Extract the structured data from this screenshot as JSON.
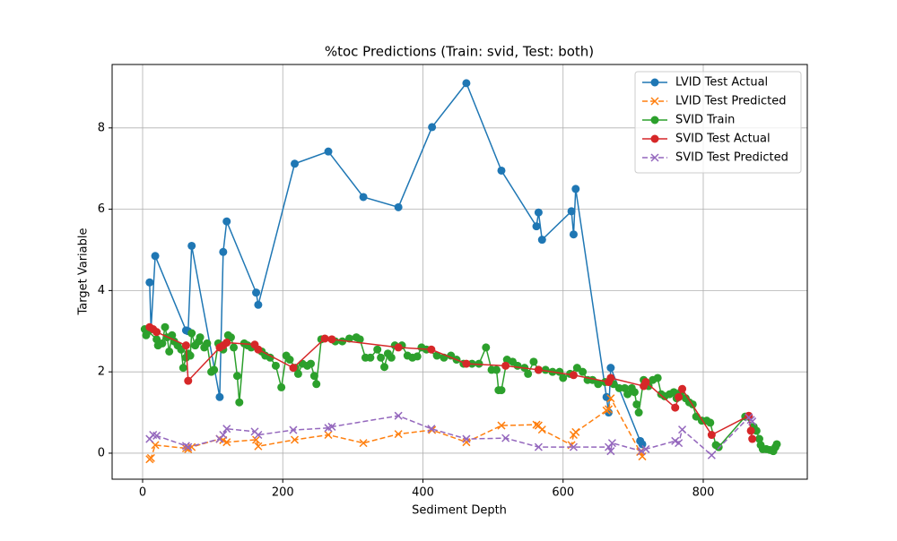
{
  "chart_data": {
    "type": "line",
    "title": "%toc Predictions (Train: svid, Test: both)",
    "x_label": "Sediment Depth",
    "y_label": "Target Variable",
    "xlim": [
      -43.5,
      948.5
    ],
    "ylim": [
      -0.64,
      9.56
    ],
    "xticks": [
      0,
      200,
      400,
      600,
      800
    ],
    "yticks": [
      0,
      2,
      4,
      6,
      8
    ],
    "grid": true,
    "legend": "upper right",
    "series": [
      {
        "name": "LVID Test Actual",
        "color": "#1f77b4",
        "linestyle": "solid",
        "marker": "o",
        "x": [
          10,
          12,
          18,
          62,
          65,
          70,
          110,
          115,
          120,
          162,
          165,
          217,
          265,
          315,
          365,
          413,
          462,
          512,
          562,
          565,
          570,
          612,
          615,
          618,
          662,
          665,
          668,
          710,
          713
        ],
        "values": [
          4.2,
          3.05,
          4.85,
          3.02,
          3.0,
          5.1,
          1.38,
          4.95,
          5.7,
          3.95,
          3.65,
          7.12,
          7.42,
          6.3,
          6.05,
          8.02,
          9.1,
          6.95,
          5.58,
          5.92,
          5.25,
          5.95,
          5.38,
          6.5,
          1.38,
          1.0,
          2.1,
          0.3,
          0.22
        ]
      },
      {
        "name": "LVID Test Predicted",
        "color": "#ff7f0e",
        "linestyle": "dashed",
        "marker": "x",
        "x": [
          10,
          12,
          18,
          62,
          65,
          70,
          110,
          115,
          120,
          162,
          165,
          217,
          265,
          315,
          365,
          413,
          462,
          512,
          562,
          565,
          570,
          612,
          615,
          618,
          662,
          665,
          668,
          710,
          713
        ],
        "values": [
          -0.15,
          -0.12,
          0.2,
          0.12,
          0.1,
          0.15,
          0.35,
          0.32,
          0.27,
          0.33,
          0.17,
          0.33,
          0.45,
          0.25,
          0.47,
          0.57,
          0.27,
          0.68,
          0.7,
          0.68,
          0.58,
          0.2,
          0.45,
          0.52,
          1.05,
          1.08,
          1.35,
          0.03,
          -0.08
        ]
      },
      {
        "name": "SVID Train",
        "color": "#2ca02c",
        "linestyle": "solid",
        "marker": "o",
        "x": [
          3,
          5,
          8,
          20,
          22,
          28,
          32,
          35,
          38,
          42,
          45,
          50,
          55,
          58,
          62,
          65,
          68,
          70,
          75,
          80,
          82,
          88,
          92,
          98,
          102,
          108,
          115,
          122,
          126,
          130,
          135,
          138,
          145,
          150,
          155,
          170,
          175,
          182,
          190,
          198,
          205,
          210,
          218,
          222,
          228,
          235,
          240,
          245,
          248,
          255,
          275,
          285,
          295,
          305,
          310,
          318,
          325,
          335,
          340,
          345,
          350,
          355,
          360,
          370,
          378,
          385,
          392,
          398,
          405,
          420,
          430,
          440,
          448,
          458,
          470,
          480,
          490,
          498,
          505,
          508,
          512,
          520,
          528,
          535,
          545,
          550,
          558,
          565,
          575,
          585,
          595,
          600,
          610,
          620,
          628,
          635,
          642,
          650,
          660,
          672,
          680,
          688,
          692,
          698,
          702,
          705,
          708,
          715,
          722,
          728,
          735,
          740,
          745,
          752,
          758,
          762,
          768,
          775,
          780,
          785,
          790,
          798,
          805,
          810,
          818,
          822,
          860,
          872,
          876,
          880,
          882,
          885,
          890,
          895,
          900,
          903,
          905
        ],
        "values": [
          3.05,
          2.9,
          3.0,
          2.8,
          2.65,
          2.7,
          3.1,
          2.85,
          2.5,
          2.9,
          2.75,
          2.65,
          2.55,
          2.1,
          2.35,
          2.45,
          2.4,
          2.95,
          2.65,
          2.75,
          2.85,
          2.6,
          2.7,
          2.0,
          2.05,
          2.7,
          2.55,
          2.9,
          2.85,
          2.6,
          1.9,
          1.25,
          2.7,
          2.65,
          2.6,
          2.5,
          2.4,
          2.35,
          2.15,
          1.62,
          2.4,
          2.3,
          2.1,
          1.95,
          2.2,
          2.15,
          2.2,
          1.9,
          1.7,
          2.8,
          2.75,
          2.75,
          2.82,
          2.85,
          2.8,
          2.35,
          2.35,
          2.55,
          2.35,
          2.12,
          2.45,
          2.35,
          2.65,
          2.65,
          2.4,
          2.35,
          2.38,
          2.6,
          2.55,
          2.4,
          2.35,
          2.4,
          2.3,
          2.2,
          2.2,
          2.2,
          2.6,
          2.05,
          2.05,
          1.55,
          1.55,
          2.3,
          2.25,
          2.15,
          2.1,
          1.95,
          2.25,
          2.05,
          2.05,
          2.0,
          2.0,
          1.85,
          1.95,
          2.1,
          2.0,
          1.8,
          1.8,
          1.7,
          1.75,
          1.7,
          1.6,
          1.6,
          1.45,
          1.6,
          1.5,
          1.2,
          1.0,
          1.8,
          1.65,
          1.8,
          1.85,
          1.45,
          1.4,
          1.45,
          1.5,
          1.35,
          1.5,
          1.35,
          1.25,
          1.2,
          0.9,
          0.8,
          0.8,
          0.75,
          0.2,
          0.15,
          0.9,
          0.65,
          0.55,
          0.35,
          0.2,
          0.1,
          0.1,
          0.08,
          0.05,
          0.15,
          0.22
        ]
      },
      {
        "name": "SVID Test Actual",
        "color": "#d62728",
        "linestyle": "solid",
        "marker": "o",
        "x": [
          10,
          15,
          20,
          62,
          65,
          110,
          115,
          120,
          160,
          165,
          215,
          260,
          270,
          365,
          412,
          462,
          518,
          565,
          615,
          665,
          668,
          715,
          718,
          760,
          765,
          770,
          812,
          865,
          868,
          870
        ],
        "values": [
          3.1,
          3.05,
          2.98,
          2.65,
          1.78,
          2.6,
          2.65,
          2.72,
          2.67,
          2.55,
          2.1,
          2.82,
          2.8,
          2.6,
          2.55,
          2.2,
          2.15,
          2.05,
          1.92,
          1.75,
          1.85,
          1.65,
          1.75,
          1.12,
          1.38,
          1.58,
          0.45,
          0.92,
          0.55,
          0.35
        ]
      },
      {
        "name": "SVID Test Predicted",
        "color": "#9467bd",
        "linestyle": "dashed",
        "marker": "x",
        "x": [
          10,
          15,
          20,
          62,
          65,
          110,
          115,
          120,
          160,
          165,
          215,
          265,
          270,
          365,
          412,
          462,
          518,
          565,
          615,
          665,
          668,
          670,
          712,
          718,
          760,
          765,
          770,
          812,
          865,
          868,
          870
        ],
        "values": [
          0.35,
          0.45,
          0.43,
          0.18,
          0.15,
          0.35,
          0.45,
          0.6,
          0.53,
          0.45,
          0.57,
          0.62,
          0.65,
          0.92,
          0.6,
          0.35,
          0.37,
          0.15,
          0.15,
          0.15,
          0.05,
          0.25,
          0.05,
          0.1,
          0.3,
          0.25,
          0.58,
          -0.05,
          0.88,
          0.82,
          0.78
        ]
      }
    ]
  }
}
